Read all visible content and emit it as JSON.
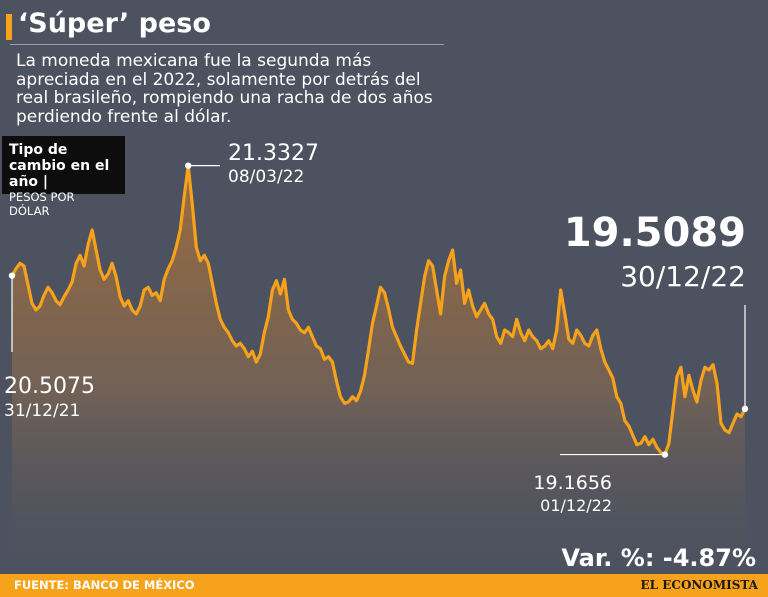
{
  "header": {
    "title": "‘Súper’ peso",
    "subtitle": "La moneda mexicana fue la segunda más apreciada en el 2022, solamente  por detrás del real brasileño, rompiendo una racha de dos años perdiendo frente al dólar."
  },
  "series_label": {
    "title": "Tipo de cambio en el año |",
    "unit": "PESOS POR DÓLAR"
  },
  "footer": {
    "source": "FUENTE: BANCO DE MÉXICO",
    "brand": "EL ECONOMISTA"
  },
  "colors": {
    "background": "#4c525f",
    "accent": "#f7a21b",
    "label_box": "#0d0d0d"
  },
  "chart_data": {
    "type": "area",
    "x_start": "31/12/21",
    "x_end": "30/12/22",
    "ylim": [
      18.9,
      21.45
    ],
    "grid": false,
    "legend": "none",
    "y": [
      20.5075,
      20.56,
      20.6,
      20.58,
      20.44,
      20.3,
      20.25,
      20.28,
      20.36,
      20.42,
      20.38,
      20.32,
      20.29,
      20.35,
      20.4,
      20.46,
      20.6,
      20.66,
      20.58,
      20.74,
      20.85,
      20.7,
      20.55,
      20.48,
      20.52,
      20.6,
      20.5,
      20.35,
      20.28,
      20.32,
      20.25,
      20.22,
      20.28,
      20.4,
      20.42,
      20.36,
      20.38,
      20.32,
      20.48,
      20.56,
      20.62,
      20.72,
      20.85,
      21.1,
      21.3327,
      21.05,
      20.72,
      20.62,
      20.66,
      20.6,
      20.45,
      20.3,
      20.18,
      20.12,
      20.08,
      20.02,
      19.98,
      20.0,
      19.96,
      19.9,
      19.94,
      19.86,
      19.92,
      20.08,
      20.2,
      20.4,
      20.47,
      20.37,
      20.48,
      20.25,
      20.18,
      20.15,
      20.1,
      20.08,
      20.12,
      20.05,
      19.98,
      19.96,
      19.88,
      19.9,
      19.86,
      19.72,
      19.6,
      19.55,
      19.56,
      19.6,
      19.57,
      19.64,
      19.76,
      19.95,
      20.15,
      20.28,
      20.42,
      20.38,
      20.26,
      20.12,
      20.05,
      19.98,
      19.92,
      19.86,
      19.85,
      20.1,
      20.3,
      20.5,
      20.62,
      20.58,
      20.4,
      20.22,
      20.5,
      20.62,
      20.7,
      20.45,
      20.55,
      20.3,
      20.4,
      20.28,
      20.2,
      20.25,
      20.3,
      20.22,
      20.18,
      20.05,
      20.0,
      20.1,
      20.08,
      20.05,
      20.18,
      20.08,
      20.02,
      20.1,
      20.05,
      20.02,
      19.96,
      19.98,
      20.02,
      19.96,
      20.1,
      20.4,
      20.22,
      20.03,
      20.0,
      20.1,
      20.06,
      20.0,
      19.98,
      20.06,
      20.1,
      19.96,
      19.86,
      19.8,
      19.74,
      19.6,
      19.55,
      19.42,
      19.38,
      19.31,
      19.24,
      19.25,
      19.3,
      19.24,
      19.28,
      19.22,
      19.18,
      19.1656,
      19.25,
      19.5,
      19.75,
      19.82,
      19.6,
      19.76,
      19.65,
      19.56,
      19.72,
      19.82,
      19.8,
      19.84,
      19.7,
      19.4,
      19.35,
      19.33,
      19.4,
      19.47,
      19.45,
      19.5089
    ],
    "annotations": [
      {
        "value": "21.3327",
        "date": "08/03/22"
      },
      {
        "value": "20.5075",
        "date": "31/12/21"
      },
      {
        "value": "19.1656",
        "date": "01/12/22"
      },
      {
        "value": "19.5089",
        "date": "30/12/22"
      }
    ],
    "variation": "Var. %: -4.87%"
  }
}
